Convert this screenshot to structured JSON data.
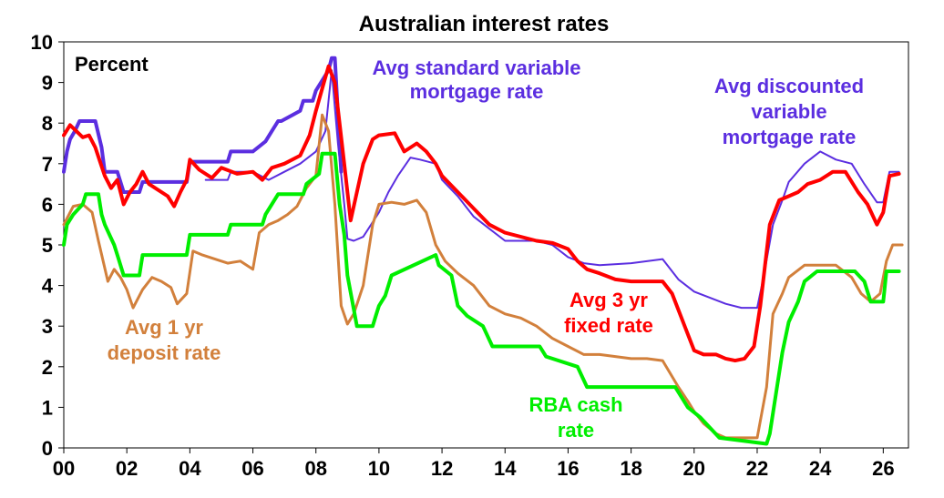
{
  "chart_data": {
    "type": "line",
    "title": "Australian interest rates",
    "ylabel": "Percent",
    "xlabel": "",
    "xlim": [
      2000,
      2026.8
    ],
    "ylim": [
      0,
      10
    ],
    "x_tick_labels": [
      "00",
      "02",
      "04",
      "06",
      "08",
      "10",
      "12",
      "14",
      "16",
      "18",
      "20",
      "22",
      "24",
      "26"
    ],
    "y_tick_labels": [
      "0",
      "1",
      "2",
      "3",
      "4",
      "5",
      "6",
      "7",
      "8",
      "9",
      "10"
    ],
    "grid": false,
    "series": [
      {
        "name": "Avg standard variable mortgage rate",
        "label_lines": [
          "Avg standard variable",
          "mortgage rate"
        ],
        "color": "#5b2ee0",
        "width": 4,
        "x": [
          2000,
          2000.1,
          2000.2,
          2000.35,
          2000.5,
          2000.6,
          2001.0,
          2001.2,
          2001.3,
          2001.7,
          2001.9,
          2002.4,
          2002.5,
          2003.9,
          2004.0,
          2005.2,
          2005.3,
          2006.0,
          2006.4,
          2006.6,
          2006.8,
          2006.9,
          2007.5,
          2007.6,
          2007.9,
          2008.0,
          2008.2,
          2008.4,
          2008.5,
          2008.6,
          2008.8
        ],
        "y": [
          6.8,
          7.3,
          7.6,
          7.8,
          8.05,
          8.05,
          8.05,
          7.4,
          6.8,
          6.8,
          6.3,
          6.3,
          6.55,
          6.55,
          7.05,
          7.05,
          7.3,
          7.3,
          7.55,
          7.8,
          8.05,
          8.05,
          8.3,
          8.55,
          8.55,
          8.8,
          9.05,
          9.3,
          9.6,
          9.6,
          6.8
        ]
      },
      {
        "name": "Avg discounted variable mortgage rate",
        "label_lines": [
          "Avg discounted",
          "variable",
          "mortgage rate"
        ],
        "color": "#5b2ee0",
        "width": 2,
        "x": [
          2004.5,
          2005.2,
          2005.3,
          2006.0,
          2006.5,
          2007.0,
          2007.5,
          2008.0,
          2008.3,
          2008.5,
          2008.7,
          2008.9,
          2009.0,
          2009.2,
          2009.5,
          2010.0,
          2010.3,
          2010.6,
          2011.0,
          2011.3,
          2011.8,
          2012.0,
          2012.5,
          2013.0,
          2013.5,
          2014.0,
          2015.0,
          2015.5,
          2016.0,
          2016.5,
          2017.0,
          2018.0,
          2019.0,
          2019.5,
          2020.0,
          2021.0,
          2021.5,
          2022.0,
          2022.2,
          2022.5,
          2022.8,
          2023.0,
          2023.5,
          2024.0,
          2024.5,
          2025.0,
          2025.4,
          2025.8,
          2026.0,
          2026.2,
          2026.5
        ],
        "y": [
          6.6,
          6.6,
          6.8,
          6.8,
          6.6,
          6.8,
          7.0,
          7.3,
          7.8,
          9.3,
          7.5,
          6.0,
          5.15,
          5.1,
          5.2,
          5.8,
          6.3,
          6.7,
          7.15,
          7.1,
          7.0,
          6.6,
          6.2,
          5.7,
          5.4,
          5.1,
          5.1,
          5.0,
          4.7,
          4.55,
          4.5,
          4.55,
          4.65,
          4.15,
          3.85,
          3.55,
          3.45,
          3.45,
          4.2,
          5.5,
          6.1,
          6.55,
          7.0,
          7.3,
          7.1,
          7.0,
          6.5,
          6.05,
          6.05,
          6.8,
          6.8
        ]
      },
      {
        "name": "Avg 3 yr fixed rate",
        "label_lines": [
          "Avg 3 yr",
          "fixed rate"
        ],
        "color": "#ff0000",
        "width": 4,
        "x": [
          2000,
          2000.2,
          2000.4,
          2000.6,
          2000.8,
          2001.0,
          2001.3,
          2001.5,
          2001.7,
          2001.9,
          2002.1,
          2002.3,
          2002.5,
          2002.7,
          2003.0,
          2003.3,
          2003.5,
          2003.7,
          2003.9,
          2004.0,
          2004.3,
          2004.7,
          2005.0,
          2005.5,
          2006.0,
          2006.3,
          2006.6,
          2007.0,
          2007.5,
          2007.8,
          2008.0,
          2008.2,
          2008.4,
          2008.6,
          2008.9,
          2009.1,
          2009.3,
          2009.5,
          2009.8,
          2010.0,
          2010.5,
          2010.8,
          2011.0,
          2011.2,
          2011.5,
          2011.8,
          2012.0,
          2012.5,
          2013.0,
          2013.5,
          2014.0,
          2015.0,
          2015.5,
          2016.0,
          2016.3,
          2016.6,
          2017.0,
          2017.5,
          2018.0,
          2018.5,
          2019.0,
          2019.3,
          2019.7,
          2020.0,
          2020.3,
          2020.7,
          2021.0,
          2021.3,
          2021.6,
          2021.9,
          2022.1,
          2022.4,
          2022.7,
          2023.0,
          2023.3,
          2023.6,
          2024.0,
          2024.4,
          2024.8,
          2025.2,
          2025.5,
          2025.8,
          2026.0,
          2026.2,
          2026.5
        ],
        "y": [
          7.7,
          7.95,
          7.8,
          7.65,
          7.7,
          7.4,
          6.7,
          6.4,
          6.6,
          6.0,
          6.3,
          6.5,
          6.8,
          6.5,
          6.35,
          6.2,
          5.95,
          6.3,
          6.6,
          7.1,
          6.85,
          6.65,
          6.9,
          6.75,
          6.8,
          6.6,
          6.9,
          7.0,
          7.2,
          7.7,
          8.3,
          8.85,
          9.4,
          9.0,
          7.0,
          5.6,
          6.3,
          7.0,
          7.6,
          7.7,
          7.75,
          7.3,
          7.4,
          7.5,
          7.3,
          7.0,
          6.7,
          6.3,
          5.9,
          5.5,
          5.3,
          5.1,
          5.05,
          4.9,
          4.6,
          4.4,
          4.3,
          4.15,
          4.1,
          4.1,
          4.1,
          3.8,
          3.0,
          2.4,
          2.3,
          2.3,
          2.2,
          2.15,
          2.2,
          2.5,
          3.5,
          5.5,
          6.1,
          6.2,
          6.3,
          6.5,
          6.6,
          6.8,
          6.8,
          6.3,
          6.0,
          5.5,
          5.8,
          6.7,
          6.75
        ]
      },
      {
        "name": "Avg 1 yr deposit rate",
        "label_lines": [
          "Avg 1 yr",
          "deposit rate"
        ],
        "color": "#d2803c",
        "width": 3,
        "x": [
          2000,
          2000.3,
          2000.6,
          2000.9,
          2001.1,
          2001.4,
          2001.6,
          2001.8,
          2002.0,
          2002.2,
          2002.5,
          2002.8,
          2003.1,
          2003.4,
          2003.6,
          2003.9,
          2004.1,
          2004.4,
          2004.8,
          2005.2,
          2005.6,
          2006.0,
          2006.2,
          2006.5,
          2006.8,
          2007.1,
          2007.4,
          2007.7,
          2008.0,
          2008.2,
          2008.4,
          2008.6,
          2008.8,
          2009.0,
          2009.2,
          2009.5,
          2009.8,
          2010.0,
          2010.4,
          2010.8,
          2011.2,
          2011.5,
          2011.8,
          2012.1,
          2012.5,
          2013.0,
          2013.5,
          2014.0,
          2014.5,
          2015.0,
          2015.5,
          2016.0,
          2016.5,
          2017.0,
          2017.5,
          2018.0,
          2018.5,
          2019.0,
          2019.5,
          2019.8,
          2020.0,
          2020.3,
          2020.7,
          2021.0,
          2021.5,
          2022.0,
          2022.3,
          2022.5,
          2022.8,
          2023.0,
          2023.5,
          2024.0,
          2024.5,
          2025.0,
          2025.3,
          2025.6,
          2025.9,
          2026.1,
          2026.3,
          2026.6
        ],
        "y": [
          5.5,
          5.95,
          6.0,
          5.8,
          5.1,
          4.1,
          4.4,
          4.2,
          3.9,
          3.45,
          3.9,
          4.2,
          4.1,
          3.95,
          3.55,
          3.8,
          4.85,
          4.75,
          4.65,
          4.55,
          4.6,
          4.4,
          5.3,
          5.5,
          5.6,
          5.75,
          5.95,
          6.4,
          6.7,
          8.2,
          7.8,
          6.0,
          3.5,
          3.05,
          3.3,
          4.0,
          5.5,
          6.0,
          6.05,
          6.0,
          6.1,
          5.8,
          5.0,
          4.6,
          4.3,
          4.0,
          3.5,
          3.3,
          3.2,
          3.0,
          2.7,
          2.5,
          2.3,
          2.3,
          2.25,
          2.2,
          2.2,
          2.15,
          1.5,
          1.15,
          0.9,
          0.6,
          0.35,
          0.25,
          0.25,
          0.25,
          1.5,
          3.3,
          3.8,
          4.2,
          4.5,
          4.5,
          4.5,
          4.2,
          3.8,
          3.6,
          3.8,
          4.6,
          5.0,
          5.0
        ]
      },
      {
        "name": "RBA cash rate",
        "label_lines": [
          "RBA cash",
          "rate"
        ],
        "color": "#00ee00",
        "width": 4,
        "x": [
          2000,
          2000.1,
          2000.3,
          2000.6,
          2000.7,
          2001.1,
          2001.2,
          2001.3,
          2001.6,
          2001.7,
          2001.9,
          2002.4,
          2002.5,
          2003.9,
          2004.0,
          2005.2,
          2005.3,
          2006.3,
          2006.4,
          2006.6,
          2006.8,
          2007.6,
          2007.7,
          2008.1,
          2008.2,
          2008.6,
          2008.75,
          2008.9,
          2009.0,
          2009.3,
          2009.8,
          2009.9,
          2010.0,
          2010.2,
          2010.4,
          2011.8,
          2011.9,
          2012.3,
          2012.5,
          2012.8,
          2013.3,
          2013.6,
          2015.1,
          2015.3,
          2016.3,
          2016.6,
          2019.4,
          2019.6,
          2019.8,
          2020.2,
          2020.8,
          2022.3,
          2022.4,
          2022.6,
          2022.8,
          2023.0,
          2023.3,
          2023.5,
          2023.9,
          2025.1,
          2025.4,
          2025.6,
          2026.0,
          2026.1,
          2026.5
        ],
        "y": [
          5.0,
          5.5,
          5.75,
          6.0,
          6.25,
          6.25,
          5.75,
          5.5,
          5.0,
          4.75,
          4.25,
          4.25,
          4.75,
          4.75,
          5.25,
          5.25,
          5.5,
          5.5,
          5.75,
          6.0,
          6.25,
          6.25,
          6.5,
          6.75,
          7.25,
          7.25,
          6.0,
          5.25,
          4.25,
          3.0,
          3.0,
          3.25,
          3.5,
          3.75,
          4.25,
          4.75,
          4.5,
          4.25,
          3.5,
          3.25,
          3.0,
          2.5,
          2.5,
          2.25,
          2.0,
          1.5,
          1.5,
          1.25,
          1.0,
          0.75,
          0.25,
          0.1,
          0.35,
          1.35,
          2.35,
          3.1,
          3.6,
          4.1,
          4.35,
          4.35,
          4.1,
          3.6,
          3.6,
          4.35,
          4.35
        ]
      }
    ],
    "legend": "inline-annotations"
  }
}
